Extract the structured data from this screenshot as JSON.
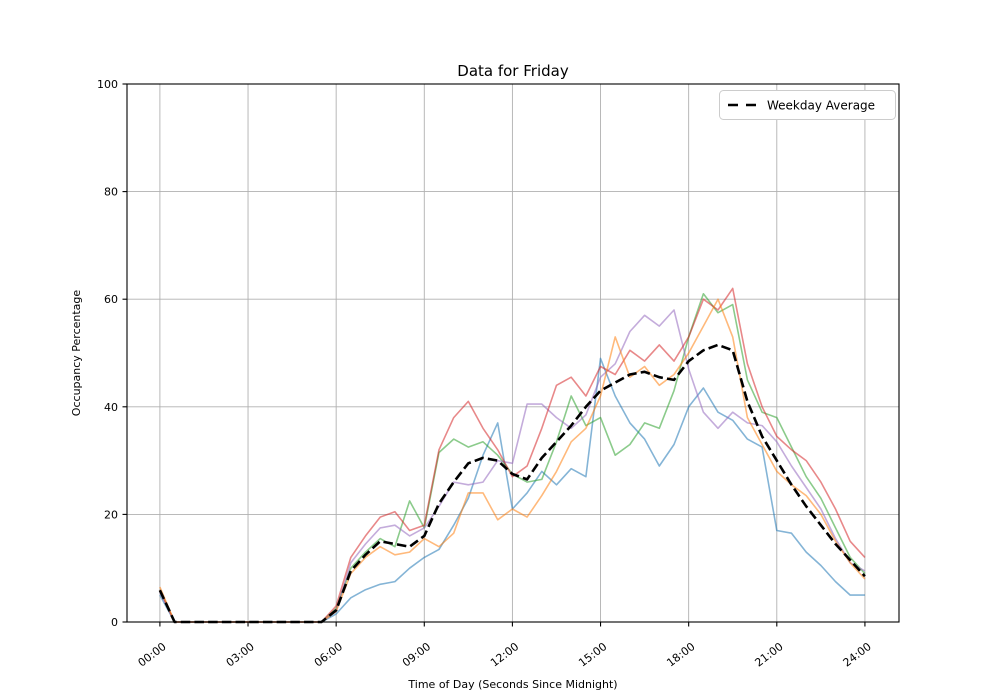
{
  "chart_data": {
    "type": "line",
    "title": "Data for Friday",
    "xlabel": "Time of Day (Seconds Since Midnight)",
    "ylabel": "Occupancy Percentage",
    "grid": true,
    "grid_color": "#b0b0b0",
    "legend_position": "upper right",
    "xlim": [
      -1.12,
      25.16
    ],
    "ylim": [
      0,
      100
    ],
    "x_tick_hours": [
      0,
      3,
      6,
      9,
      12,
      15,
      18,
      21,
      24
    ],
    "x_tick_labels": [
      "00:00",
      "03:00",
      "06:00",
      "09:00",
      "12:00",
      "15:00",
      "18:00",
      "21:00",
      "24:00"
    ],
    "y_ticks": [
      0,
      20,
      40,
      60,
      80,
      100
    ],
    "y_tick_labels": [
      "0",
      "20",
      "40",
      "60",
      "80",
      "100"
    ],
    "x_hours": [
      0,
      0.5,
      1,
      1.5,
      2,
      2.5,
      3,
      3.5,
      4,
      4.5,
      5,
      5.5,
      6,
      6.5,
      7,
      7.5,
      8,
      8.5,
      9,
      9.5,
      10,
      10.5,
      11,
      11.5,
      12,
      12.5,
      13,
      13.5,
      14,
      14.5,
      15,
      15.5,
      16,
      16.5,
      17,
      17.5,
      18,
      18.5,
      19,
      19.5,
      20,
      20.5,
      21,
      21.5,
      22,
      22.5,
      23,
      23.5,
      24
    ],
    "series": [
      {
        "name": "weekday-1",
        "label": null,
        "color": "#1f77b4",
        "opacity": 0.55,
        "style": "solid",
        "values": [
          5,
          0,
          0,
          0,
          0,
          0,
          0,
          0,
          0,
          0,
          0,
          0,
          1.5,
          4.5,
          6,
          7,
          7.5,
          10,
          12,
          13.5,
          18,
          23,
          31,
          37,
          21,
          24,
          28,
          25.5,
          28.5,
          27,
          49,
          42,
          37,
          34,
          29,
          33,
          40,
          43.5,
          39,
          37.5,
          34,
          32.5,
          17,
          16.5,
          13,
          10.5,
          7.5,
          5,
          5
        ]
      },
      {
        "name": "weekday-2",
        "label": null,
        "color": "#2ca02c",
        "opacity": 0.55,
        "style": "solid",
        "values": [
          6,
          0,
          0,
          0,
          0,
          0,
          0,
          0,
          0,
          0,
          0,
          0,
          2.5,
          10,
          13,
          15.5,
          14,
          22.5,
          17.5,
          31.5,
          34,
          32.5,
          33.5,
          31,
          27.5,
          26,
          26.5,
          33.5,
          42,
          36.5,
          38,
          31,
          33,
          37,
          36,
          43,
          53,
          61,
          57.5,
          59,
          45,
          39,
          38,
          32.5,
          27,
          23,
          17.5,
          12,
          9
        ]
      },
      {
        "name": "weekday-3",
        "label": null,
        "color": "#9467bd",
        "opacity": 0.55,
        "style": "solid",
        "values": [
          5.5,
          0,
          0,
          0,
          0,
          0,
          0,
          0,
          0,
          0,
          0,
          0,
          2,
          11,
          14.5,
          17.5,
          18,
          16,
          17.5,
          21.5,
          26,
          25.5,
          26,
          30,
          29.5,
          40.5,
          40.5,
          38,
          36,
          38.5,
          45.5,
          48,
          54,
          57,
          55,
          58,
          47,
          39,
          36,
          39,
          37,
          36.5,
          33.5,
          29,
          25,
          21,
          15.5,
          11,
          9.5
        ]
      },
      {
        "name": "weekday-4",
        "label": null,
        "color": "#d62728",
        "opacity": 0.55,
        "style": "solid",
        "values": [
          6,
          0,
          0,
          0,
          0,
          0,
          0,
          0,
          0,
          0,
          0,
          0,
          3,
          12,
          16,
          19.5,
          20.5,
          17,
          18,
          32,
          38,
          41,
          36,
          32,
          27,
          29,
          36,
          44,
          45.5,
          42,
          47.5,
          46,
          50.5,
          48.5,
          51.5,
          48.5,
          53,
          60,
          58,
          62,
          48,
          40,
          34.5,
          32,
          30,
          26,
          21,
          15,
          12
        ]
      },
      {
        "name": "weekday-5",
        "label": null,
        "color": "#ff7f0e",
        "opacity": 0.55,
        "style": "solid",
        "values": [
          6.5,
          0,
          0,
          0,
          0,
          0,
          0,
          0,
          0,
          0,
          0,
          0,
          2,
          9,
          12,
          14,
          12.5,
          13,
          15.5,
          14,
          16.5,
          24,
          24,
          19,
          21,
          19.5,
          23.5,
          28,
          33.5,
          36,
          42,
          53,
          45.5,
          47.5,
          44,
          46,
          50,
          55,
          60,
          53,
          38,
          33,
          28,
          25.5,
          23.5,
          20,
          15,
          11,
          8
        ]
      },
      {
        "name": "weekday-average",
        "label": "Weekday Average",
        "color": "#000000",
        "opacity": 1,
        "style": "dashed",
        "values": [
          5.9,
          0,
          0,
          0,
          0,
          0,
          0,
          0,
          0,
          0,
          0,
          0,
          2.2,
          9.5,
          12.5,
          15,
          14.5,
          14,
          16,
          22,
          26,
          29.5,
          30.5,
          30,
          27.5,
          26.5,
          30.5,
          33.5,
          36.5,
          40,
          43,
          44.5,
          46,
          46.5,
          45.5,
          45,
          48.5,
          50.5,
          51.5,
          50.5,
          41,
          34.5,
          30,
          25.5,
          21.5,
          18,
          14.5,
          11.5,
          8.5
        ]
      }
    ]
  }
}
